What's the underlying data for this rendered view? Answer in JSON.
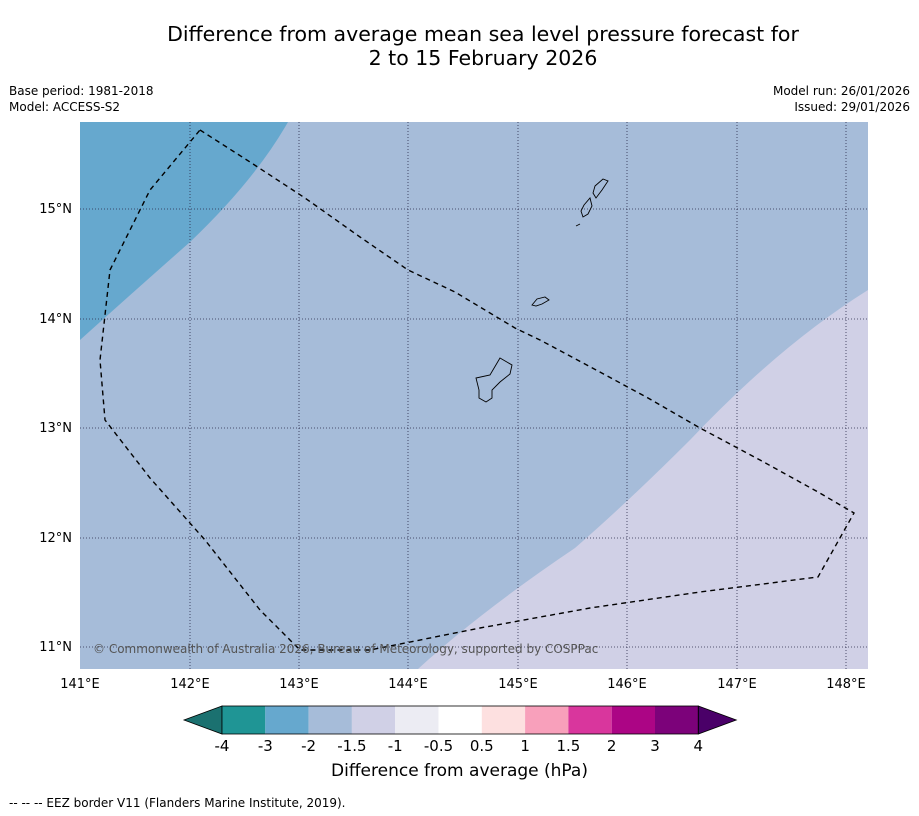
{
  "title_line1": "Difference from average mean sea level pressure forecast for",
  "title_line2": "2 to 15 February 2026",
  "base_period": "Base period: 1981-2018",
  "model": "Model: ACCESS-S2",
  "model_run": "Model run: 26/01/2026",
  "issued": "Issued: 29/01/2026",
  "copyright": "© Commonwealth of Australia 2026, Bureau of Meteorology, supported by COSPPac",
  "lon_labels": [
    "141°E",
    "142°E",
    "143°E",
    "144°E",
    "145°E",
    "146°E",
    "147°E",
    "148°E"
  ],
  "lat_labels": [
    "15°N",
    "14°N",
    "13°N",
    "12°N",
    "11°N"
  ],
  "colorbar": {
    "title": "Difference from average (hPa)",
    "labels": [
      "-4",
      "-3",
      "-2",
      "-1.5",
      "-1",
      "-0.5",
      "0.5",
      "1",
      "1.5",
      "2",
      "3",
      "4"
    ],
    "colors": [
      "#1b7170",
      "#1f9595",
      "#66a8ce",
      "#a6bcd9",
      "#d0d0e6",
      "#ececf3",
      "#ffffff",
      "#fde0e0",
      "#f8a0bb",
      "#d9369d",
      "#ac0585",
      "#7c027a",
      "#4a0068"
    ]
  },
  "footnote": "--  --  -- EEZ border V11 (Flanders Marine Institute, 2019).",
  "map_colors": {
    "band_minus3_to_minus2": "#66a8ce",
    "band_minus2_to_minus1_5": "#a6bcd9",
    "band_minus1_5_to_minus1": "#d0d0e6"
  }
}
